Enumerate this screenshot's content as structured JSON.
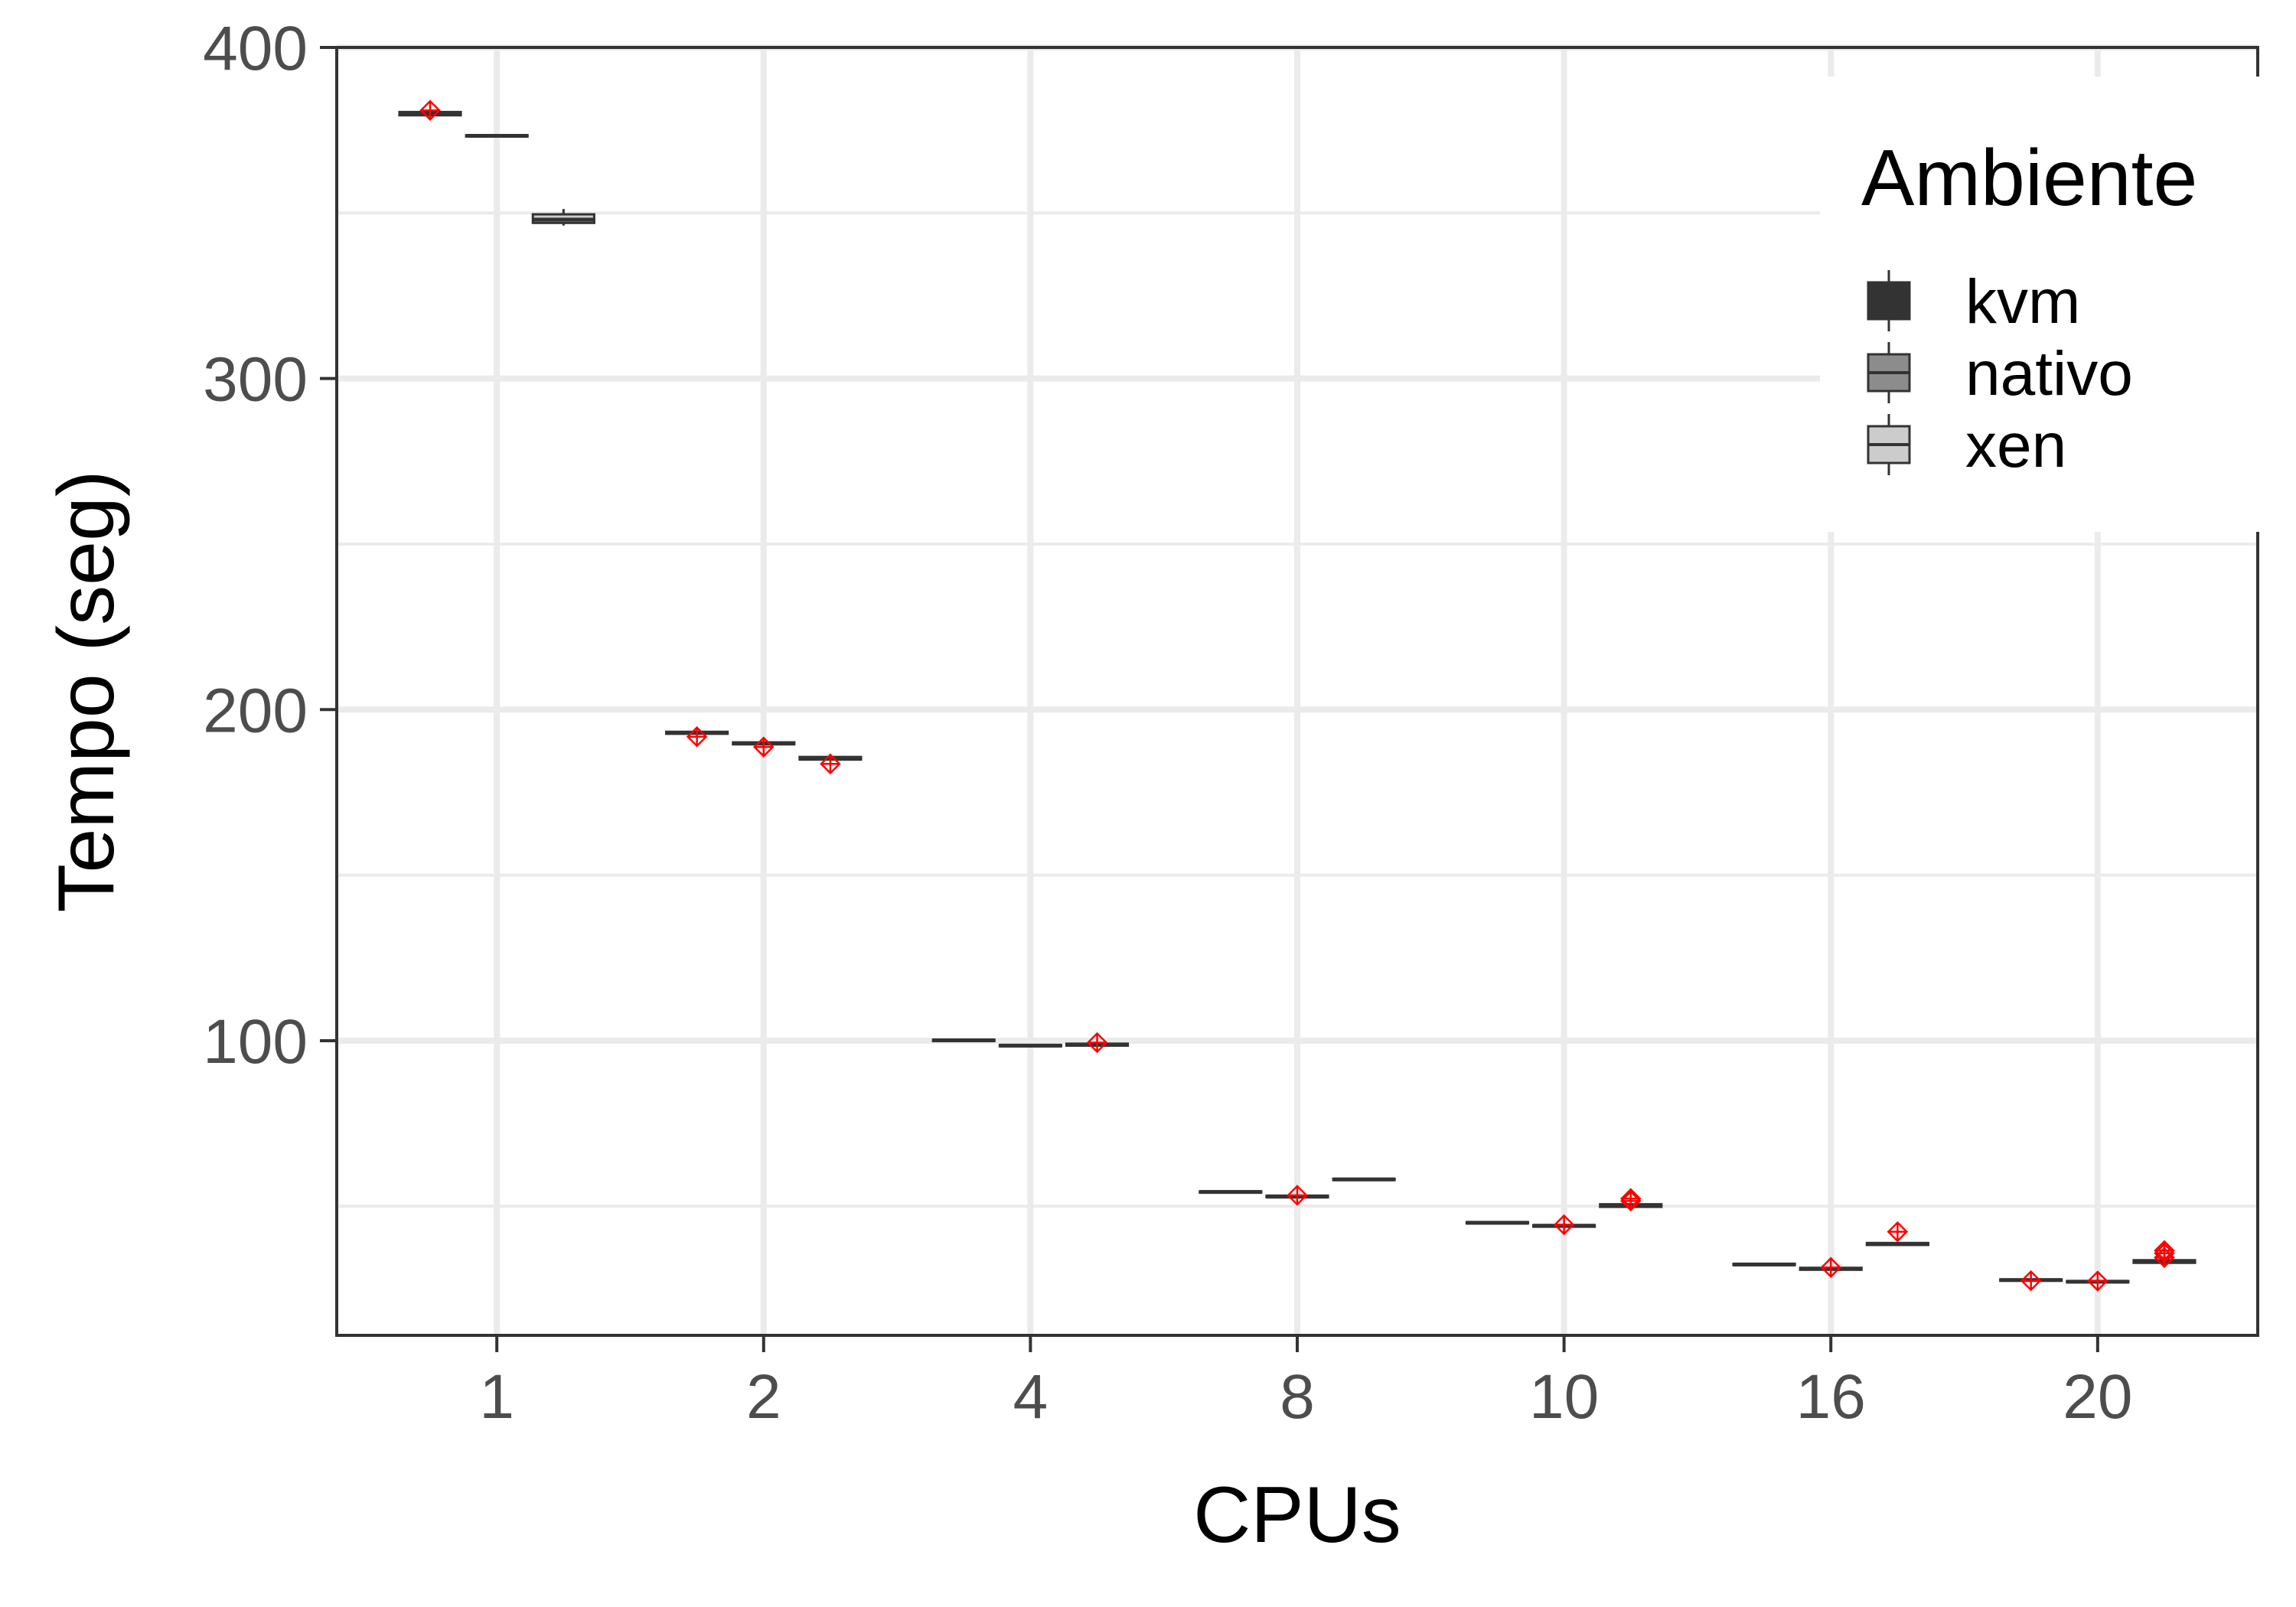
{
  "chart_data": {
    "type": "boxplot",
    "title": "",
    "xlabel": "CPUs",
    "ylabel": "Tempo (seg)",
    "ylim": [
      11,
      400
    ],
    "yticks": [
      100,
      200,
      300,
      400
    ],
    "categories": [
      "1",
      "2",
      "4",
      "8",
      "10",
      "16",
      "20"
    ],
    "grid": true,
    "legend_placement": "top-right",
    "legend_title": "Ambiente",
    "series": [
      {
        "name": "kvm",
        "fill": "#333333",
        "boxes": [
          {
            "q1": 379.5,
            "median": 380,
            "q3": 380.5,
            "min": 379.5,
            "max": 380.5,
            "mean": 381,
            "outliers": []
          },
          {
            "q1": 192.7,
            "median": 193,
            "q3": 193.3,
            "min": 192.7,
            "max": 193.3,
            "mean": 191.8,
            "outliers": []
          },
          {
            "q1": 99.9,
            "median": 100.1,
            "q3": 100.3,
            "min": 99.9,
            "max": 100.3,
            "mean": null,
            "outliers": []
          },
          {
            "q1": 54.1,
            "median": 54.3,
            "q3": 54.5,
            "min": 54.1,
            "max": 54.5,
            "mean": null,
            "outliers": []
          },
          {
            "q1": 44.8,
            "median": 45,
            "q3": 45.2,
            "min": 44.8,
            "max": 45.2,
            "mean": null,
            "outliers": []
          },
          {
            "q1": 32.2,
            "median": 32.4,
            "q3": 32.6,
            "min": 32.2,
            "max": 32.6,
            "mean": null,
            "outliers": []
          },
          {
            "q1": 27.5,
            "median": 27.7,
            "q3": 27.9,
            "min": 27.5,
            "max": 27.9,
            "mean": 27.5,
            "outliers": []
          }
        ]
      },
      {
        "name": "nativo",
        "fill": "#8c8c8c",
        "boxes": [
          {
            "q1": 373.1,
            "median": 373.3,
            "q3": 373.5,
            "min": 373.1,
            "max": 373.5,
            "mean": null,
            "outliers": []
          },
          {
            "q1": 189.5,
            "median": 189.8,
            "q3": 190.1,
            "min": 189.5,
            "max": 190.1,
            "mean": 188.7,
            "outliers": []
          },
          {
            "q1": 98.3,
            "median": 98.5,
            "q3": 98.7,
            "min": 98.3,
            "max": 98.7,
            "mean": null,
            "outliers": []
          },
          {
            "q1": 52.7,
            "median": 52.9,
            "q3": 53.2,
            "min": 52.7,
            "max": 53.2,
            "mean": 53.3,
            "outliers": []
          },
          {
            "q1": 43.8,
            "median": 44.1,
            "q3": 44.3,
            "min": 43.8,
            "max": 44.3,
            "mean": 44.4,
            "outliers": []
          },
          {
            "q1": 30.8,
            "median": 31.1,
            "q3": 31.4,
            "min": 30.8,
            "max": 31.4,
            "mean": 31.5,
            "outliers": []
          },
          {
            "q1": 27.0,
            "median": 27.2,
            "q3": 27.4,
            "min": 27.0,
            "max": 27.4,
            "mean": 27.4,
            "outliers": []
          }
        ]
      },
      {
        "name": "xen",
        "fill": "#cccccc",
        "boxes": [
          {
            "q1": 347.0,
            "median": 348.0,
            "q3": 349.6,
            "min": 346.2,
            "max": 351.2,
            "mean": null,
            "outliers": []
          },
          {
            "q1": 184.9,
            "median": 185.3,
            "q3": 185.7,
            "min": 184.9,
            "max": 185.7,
            "mean": 183.6,
            "outliers": []
          },
          {
            "q1": 98.5,
            "median": 98.8,
            "q3": 99.1,
            "min": 98.5,
            "max": 99.1,
            "mean": 99.4,
            "outliers": []
          },
          {
            "q1": 57.9,
            "median": 58.1,
            "q3": 58.3,
            "min": 57.9,
            "max": 58.3,
            "mean": null,
            "outliers": []
          },
          {
            "q1": 49.8,
            "median": 50.2,
            "q3": 50.6,
            "min": 49.8,
            "max": 50.6,
            "mean": 51.6,
            "outliers": [
              52.3
            ]
          },
          {
            "q1": 38.3,
            "median": 38.6,
            "q3": 38.9,
            "min": 38.3,
            "max": 38.9,
            "mean": 42.3,
            "outliers": []
          },
          {
            "q1": 32.9,
            "median": 33.3,
            "q3": 33.7,
            "min": 32.9,
            "max": 33.7,
            "mean": 34.5,
            "outliers": [
              35.8,
              36.6
            ]
          }
        ]
      }
    ],
    "mean_marker": {
      "shape": "diamond-cross",
      "color": "#ff0000"
    }
  }
}
